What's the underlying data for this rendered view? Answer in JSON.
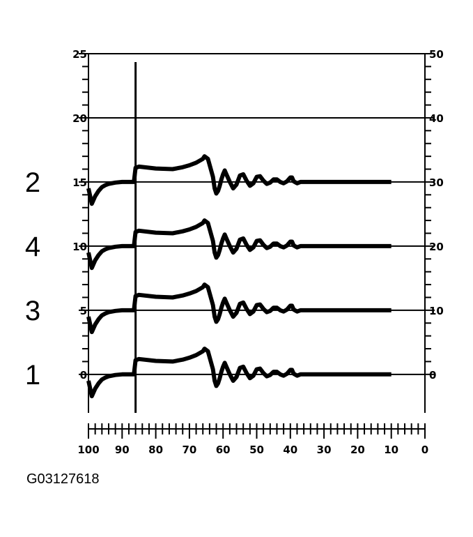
{
  "figure_id": "G03127618",
  "chart_data": {
    "type": "line",
    "title": "",
    "xlabel": "",
    "ylabel": "",
    "x_ticks": [
      "100",
      "90",
      "80",
      "70",
      "60",
      "50",
      "40",
      "30",
      "20",
      "10",
      "0"
    ],
    "left_y_ticks": [
      "0",
      "5",
      "10",
      "15",
      "20",
      "25"
    ],
    "right_y_ticks": [
      "0",
      "10",
      "20",
      "30",
      "40",
      "50"
    ],
    "xlim": [
      100,
      0
    ],
    "ylim_left": [
      -3,
      25
    ],
    "ylim_right": [
      -6,
      50
    ],
    "grid": "horizontal lines at major left ticks",
    "trigger_line_x": 86,
    "channel_labels": [
      {
        "label": "2",
        "baseline": 15
      },
      {
        "label": "4",
        "baseline": 10
      },
      {
        "label": "3",
        "baseline": 5
      },
      {
        "label": "1",
        "baseline": 0
      }
    ],
    "series_shape_relative_to_baseline": {
      "x": [
        100,
        99,
        98,
        97,
        96,
        95,
        94,
        92,
        90,
        88,
        86.5,
        86,
        85,
        80,
        75,
        72,
        70,
        68,
        66,
        65.5,
        64.5,
        63,
        62.5,
        62,
        61.5,
        61,
        60.5,
        60,
        59.5,
        59,
        58,
        57,
        56,
        55,
        54,
        53,
        52,
        51,
        50,
        49,
        48,
        47,
        46,
        45,
        44,
        43,
        42,
        41,
        40,
        39.5,
        39,
        38,
        37,
        36,
        10
      ],
      "y": [
        -0.5,
        -1.7,
        -1.1,
        -0.7,
        -0.4,
        -0.25,
        -0.15,
        -0.05,
        0,
        0,
        0,
        1.1,
        1.2,
        1.05,
        1.0,
        1.15,
        1.3,
        1.5,
        1.8,
        2.0,
        1.8,
        0.4,
        -0.5,
        -0.9,
        -0.7,
        -0.3,
        0.2,
        0.6,
        0.9,
        0.6,
        0.0,
        -0.5,
        -0.2,
        0.5,
        0.6,
        0.1,
        -0.3,
        -0.1,
        0.4,
        0.45,
        0.1,
        -0.15,
        -0.05,
        0.2,
        0.2,
        0.0,
        -0.1,
        0.05,
        0.35,
        0.35,
        0.05,
        -0.1,
        0.0,
        0.0,
        0.0
      ]
    }
  }
}
